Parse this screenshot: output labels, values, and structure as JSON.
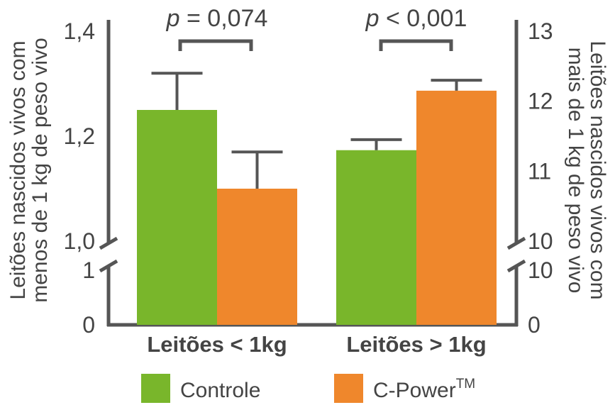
{
  "chart_data": {
    "type": "bar",
    "categories": [
      "Leitões < 1kg",
      "Leitões > 1kg"
    ],
    "series": [
      {
        "name": "Controle",
        "values": [
          1.25,
          11.3
        ],
        "error_upper": [
          1.32,
          11.45
        ]
      },
      {
        "name": "C-Power™",
        "values": [
          1.1,
          12.15
        ],
        "error_upper": [
          1.17,
          12.3
        ]
      }
    ],
    "left_axis": {
      "label": "Leitões nascidos vivos com menos de 1 kg de peso vivo",
      "label_lines": [
        "Leitões nascidos vivos com",
        "menos de 1 kg de peso vivo"
      ],
      "ticks_upper": [
        "1,4",
        "1,2",
        "1,0"
      ],
      "tick_values_upper": [
        1.4,
        1.2,
        1.0
      ],
      "ticks_lower": [
        "1",
        "0"
      ],
      "ylim_upper": [
        1.0,
        1.4
      ],
      "break": true
    },
    "right_axis": {
      "label": "Leitões nascidos vivos com mais de 1 kg de peso vivo",
      "label_lines": [
        "Leitões nascidos vivos com",
        "mais de 1 kg de peso vivo"
      ],
      "ticks_upper": [
        "13",
        "12",
        "11",
        "10"
      ],
      "tick_values_upper": [
        13,
        12,
        11,
        10
      ],
      "ticks_lower": [
        "10",
        "0"
      ],
      "ylim_upper": [
        10,
        13
      ],
      "break": true
    },
    "annotations": [
      {
        "group": 0,
        "text_p": "p",
        "text_rest": " = 0,074"
      },
      {
        "group": 1,
        "text_p": "p",
        "text_rest": " < 0,001"
      }
    ],
    "colors": {
      "Controle": "#79b62b",
      "C-Power™": "#ef872c",
      "axis": "#555555",
      "text": "#444444"
    },
    "legend_position": "bottom"
  },
  "legend": {
    "controle_label": "Controle",
    "cpower_label": "C-Power",
    "cpower_superscript": "TM"
  }
}
